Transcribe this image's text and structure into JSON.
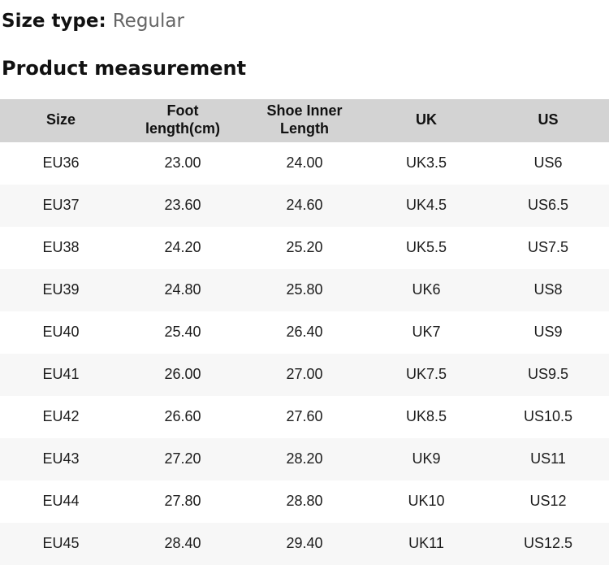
{
  "page": {
    "size_type_label": "Size type:",
    "size_type_value": "Regular",
    "section_title": "Product measurement"
  },
  "table": {
    "columns": [
      "Size",
      "Foot length(cm)",
      "Shoe Inner Length",
      "UK",
      "US"
    ],
    "rows": [
      [
        "EU36",
        "23.00",
        "24.00",
        "UK3.5",
        "US6"
      ],
      [
        "EU37",
        "23.60",
        "24.60",
        "UK4.5",
        "US6.5"
      ],
      [
        "EU38",
        "24.20",
        "25.20",
        "UK5.5",
        "US7.5"
      ],
      [
        "EU39",
        "24.80",
        "25.80",
        "UK6",
        "US8"
      ],
      [
        "EU40",
        "25.40",
        "26.40",
        "UK7",
        "US9"
      ],
      [
        "EU41",
        "26.00",
        "27.00",
        "UK7.5",
        "US9.5"
      ],
      [
        "EU42",
        "26.60",
        "27.60",
        "UK8.5",
        "US10.5"
      ],
      [
        "EU43",
        "27.20",
        "28.20",
        "UK9",
        "US11"
      ],
      [
        "EU44",
        "27.80",
        "28.80",
        "UK10",
        "US12"
      ],
      [
        "EU45",
        "28.40",
        "29.40",
        "UK11",
        "US12.5"
      ]
    ]
  },
  "colors": {
    "header_bg": "#d3d3d3",
    "alt_row_bg": "#f7f7f7",
    "cell_text": "#1c1c1c",
    "muted_text": "#666666"
  }
}
